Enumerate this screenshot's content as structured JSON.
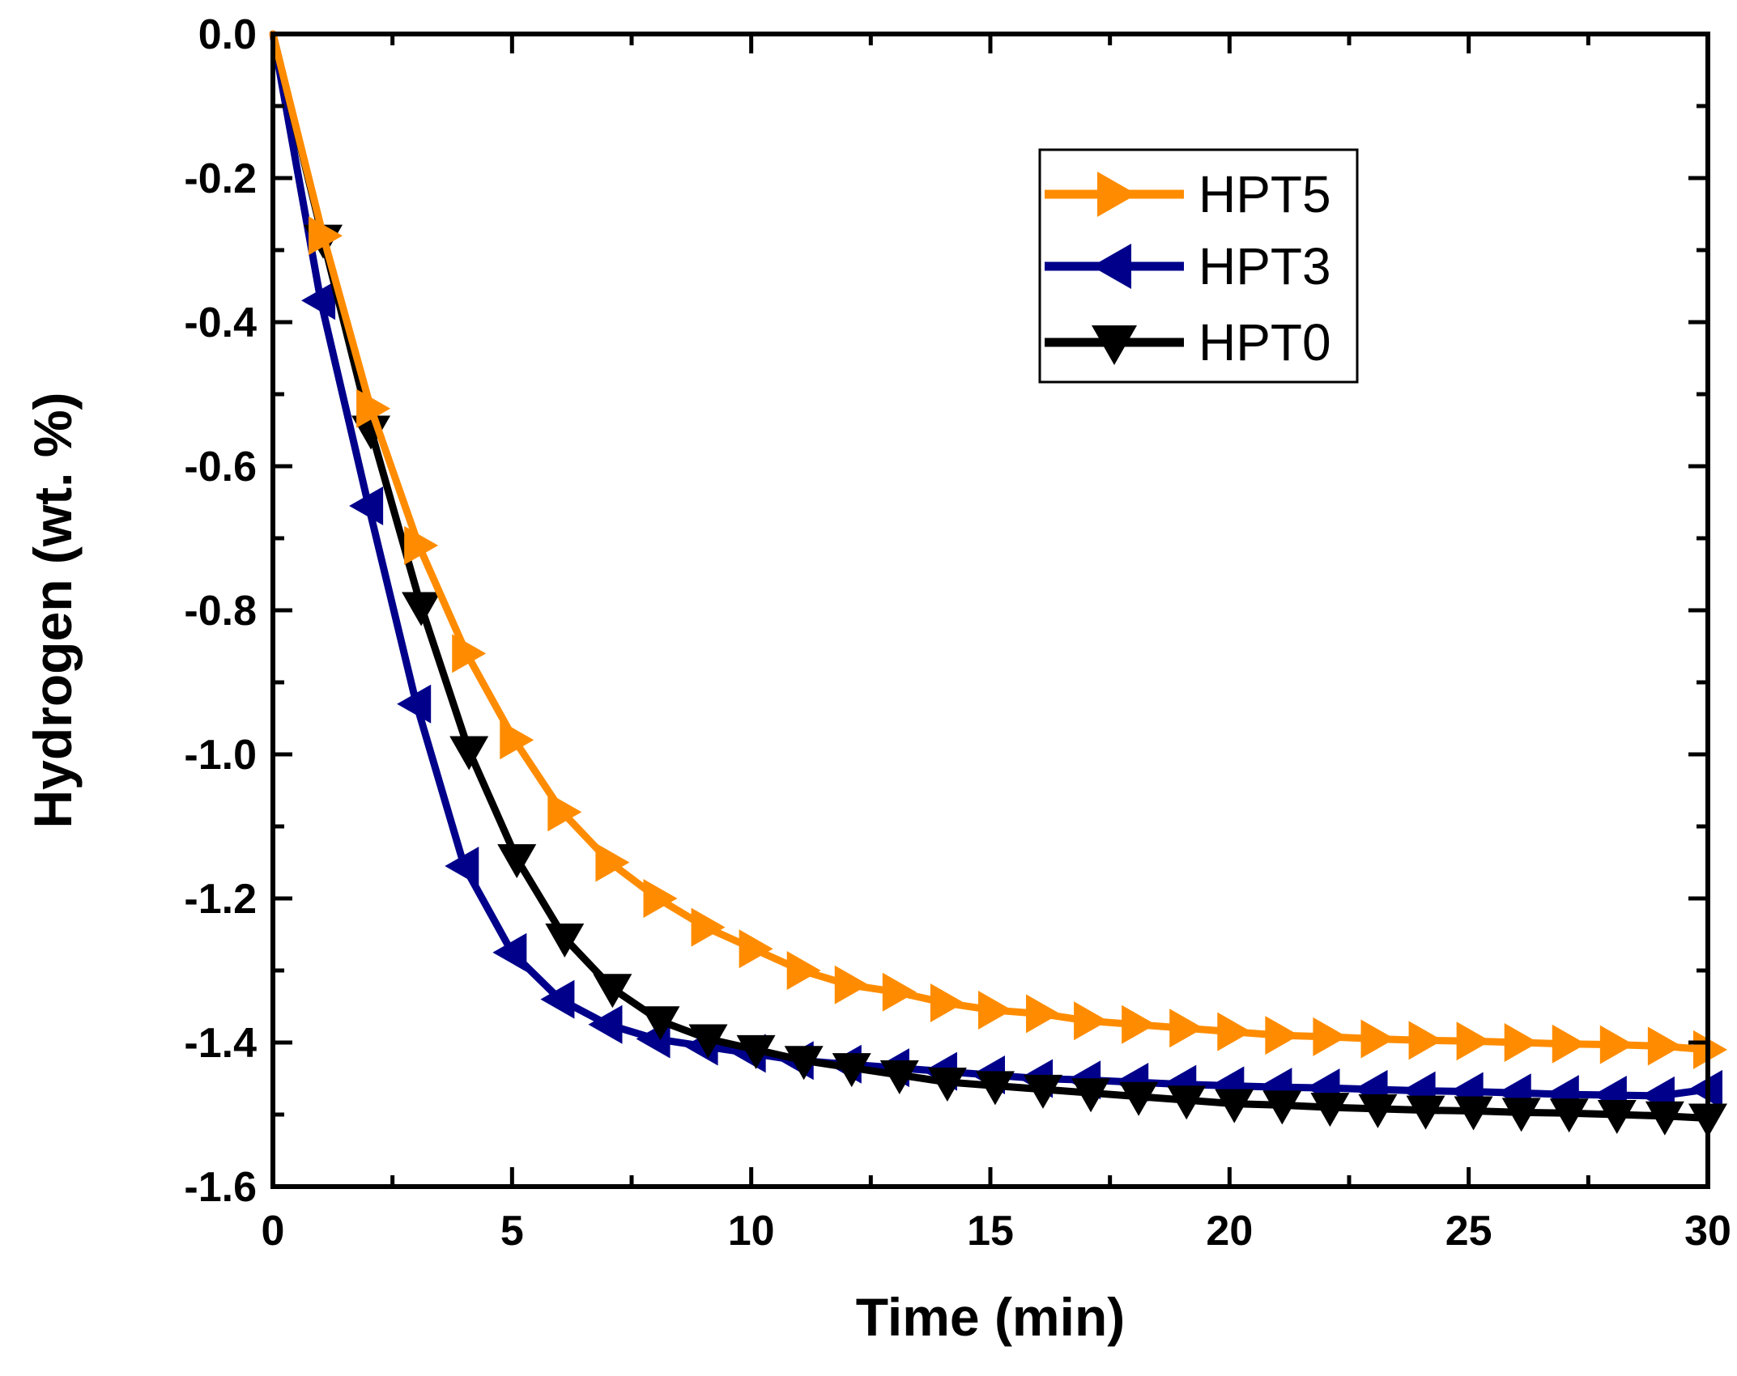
{
  "chart_data": {
    "type": "line",
    "title": "",
    "xlabel": "Time (min)",
    "ylabel": "Hydrogen (wt. %)",
    "xlim": [
      0,
      30
    ],
    "ylim": [
      -1.6,
      0.0
    ],
    "x_ticks": [
      0,
      5,
      10,
      15,
      20,
      25,
      30
    ],
    "x_tick_labels": [
      "0",
      "5",
      "10",
      "15",
      "20",
      "25",
      "30"
    ],
    "y_ticks": [
      0.0,
      -0.2,
      -0.4,
      -0.6,
      -0.8,
      -1.0,
      -1.2,
      -1.4,
      -1.6
    ],
    "y_tick_labels": [
      "0.0",
      "-0.2",
      "-0.4",
      "-0.6",
      "-0.8",
      "-1.0",
      "-1.2",
      "-1.4",
      "-1.6"
    ],
    "grid": false,
    "legend_position": "top-right",
    "series": [
      {
        "name": "HPT5",
        "color": "#FF8C00",
        "marker": "triangle-right",
        "x": [
          0,
          1.05,
          2.05,
          3.05,
          4.05,
          5.05,
          6.05,
          7.05,
          8.05,
          9.05,
          10.05,
          11.05,
          12.05,
          13.05,
          14.05,
          15.05,
          16.05,
          17.05,
          18.05,
          19.05,
          20.05,
          21.05,
          22.05,
          23.05,
          24.05,
          25.05,
          26.05,
          27.05,
          28.05,
          29.05,
          30
        ],
        "y": [
          0.0,
          -0.28,
          -0.52,
          -0.71,
          -0.86,
          -0.98,
          -1.08,
          -1.15,
          -1.2,
          -1.24,
          -1.27,
          -1.3,
          -1.32,
          -1.33,
          -1.345,
          -1.355,
          -1.36,
          -1.37,
          -1.375,
          -1.38,
          -1.385,
          -1.39,
          -1.392,
          -1.395,
          -1.397,
          -1.398,
          -1.4,
          -1.402,
          -1.403,
          -1.405,
          -1.41
        ]
      },
      {
        "name": "HPT3",
        "color": "#00008B",
        "marker": "triangle-left",
        "x": [
          0,
          1,
          2,
          3,
          4,
          5,
          6,
          7,
          8,
          9,
          10,
          11,
          12,
          13,
          14,
          15,
          16,
          17,
          18,
          19,
          20,
          21,
          22,
          23,
          24,
          25,
          26,
          27,
          28,
          29,
          30
        ],
        "y": [
          0.0,
          -0.37,
          -0.655,
          -0.93,
          -1.155,
          -1.275,
          -1.34,
          -1.375,
          -1.395,
          -1.405,
          -1.415,
          -1.425,
          -1.43,
          -1.435,
          -1.44,
          -1.445,
          -1.45,
          -1.452,
          -1.455,
          -1.458,
          -1.46,
          -1.462,
          -1.463,
          -1.465,
          -1.467,
          -1.468,
          -1.47,
          -1.472,
          -1.473,
          -1.474,
          -1.465
        ]
      },
      {
        "name": "HPT0",
        "color": "#000000",
        "marker": "triangle-down",
        "x": [
          0,
          1.05,
          2.05,
          3.1,
          4.1,
          5.1,
          6.1,
          7.1,
          8.1,
          9.1,
          10.1,
          11.1,
          12.1,
          13.1,
          14.1,
          15.1,
          16.1,
          17.1,
          18.1,
          19.1,
          20.1,
          21.1,
          22.1,
          23.1,
          24.1,
          25.1,
          26.1,
          27.1,
          28.1,
          29.1,
          30
        ],
        "y": [
          0.0,
          -0.285,
          -0.55,
          -0.795,
          -0.995,
          -1.145,
          -1.255,
          -1.325,
          -1.37,
          -1.395,
          -1.41,
          -1.425,
          -1.435,
          -1.445,
          -1.455,
          -1.46,
          -1.465,
          -1.47,
          -1.475,
          -1.48,
          -1.485,
          -1.487,
          -1.49,
          -1.492,
          -1.494,
          -1.495,
          -1.497,
          -1.498,
          -1.5,
          -1.502,
          -1.505
        ]
      }
    ]
  }
}
